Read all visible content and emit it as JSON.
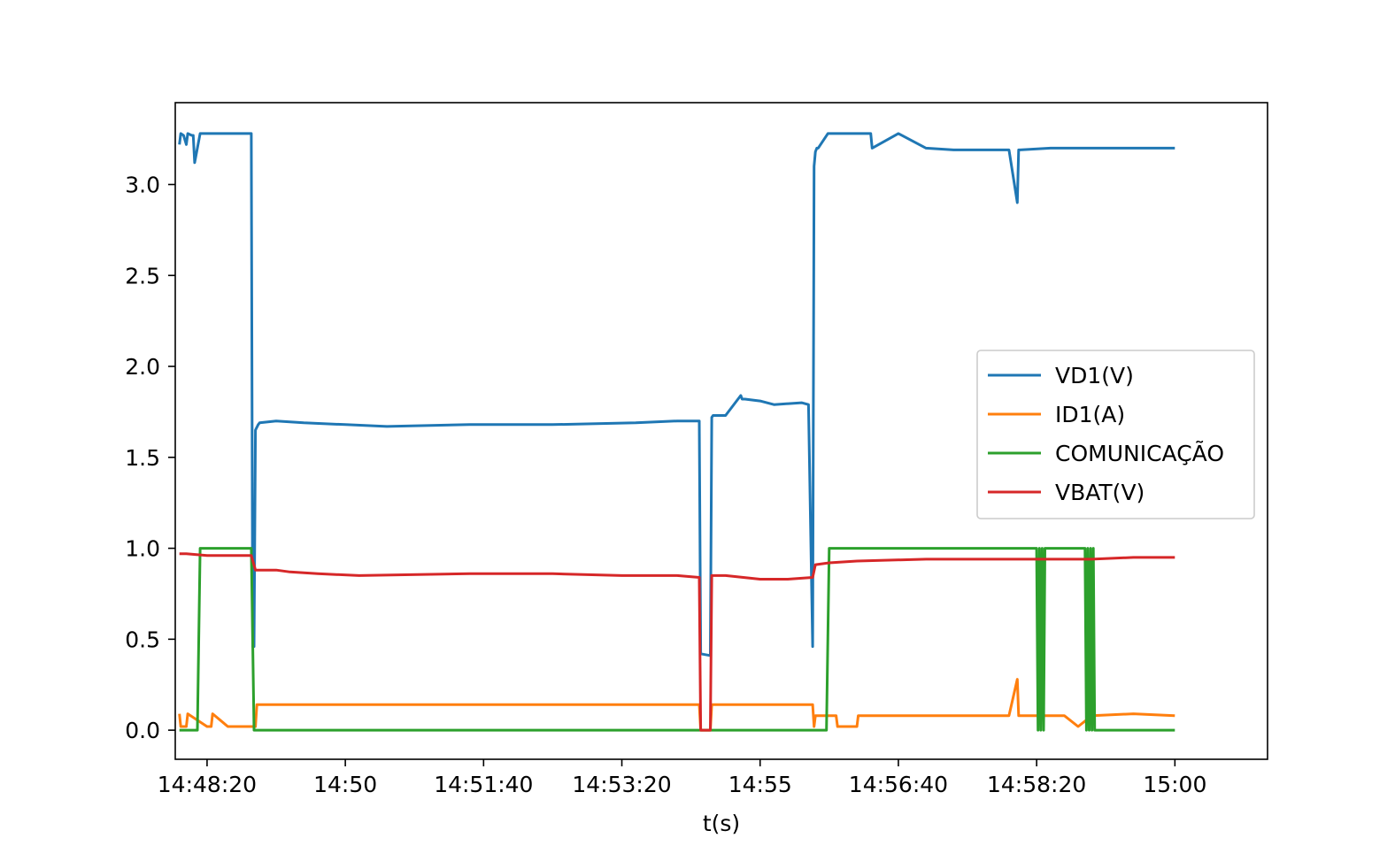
{
  "chart_data": {
    "type": "line",
    "title": "",
    "xlabel": "t(s)",
    "ylabel": "",
    "x_unit": "time of day (hh:mm:ss)",
    "xlim": [
      "14:47:57",
      "15:01:07"
    ],
    "ylim": [
      -0.16,
      3.45
    ],
    "x_ticks": [
      {
        "time": "14:48:20",
        "label": "14:48:20"
      },
      {
        "time": "14:50:00",
        "label": "14:50"
      },
      {
        "time": "14:51:40",
        "label": "14:51:40"
      },
      {
        "time": "14:53:20",
        "label": "14:53:20"
      },
      {
        "time": "14:55:00",
        "label": "14:55"
      },
      {
        "time": "14:56:40",
        "label": "14:56:40"
      },
      {
        "time": "14:58:20",
        "label": "14:58:20"
      },
      {
        "time": "15:00:00",
        "label": "15:00"
      }
    ],
    "y_ticks": [
      {
        "value": 0.0,
        "label": "0.0"
      },
      {
        "value": 0.5,
        "label": "0.5"
      },
      {
        "value": 1.0,
        "label": "1.0"
      },
      {
        "value": 1.5,
        "label": "1.5"
      },
      {
        "value": 2.0,
        "label": "2.0"
      },
      {
        "value": 2.5,
        "label": "2.5"
      },
      {
        "value": 3.0,
        "label": "3.0"
      }
    ],
    "grid": false,
    "legend_position": "center-right",
    "series": [
      {
        "name": "VD1(V)",
        "color": "#1f77b4",
        "x": [
          "14:48:00",
          "14:48:01",
          "14:48:03",
          "14:48:05",
          "14:48:06",
          "14:48:09",
          "14:48:10",
          "14:48:11",
          "14:48:15",
          "14:48:23",
          "14:48:24",
          "14:48:25",
          "14:48:35",
          "14:48:50",
          "14:48:52",
          "14:48:53",
          "14:48:54",
          "14:48:55",
          "14:48:57",
          "14:48:58",
          "14:49:10",
          "14:49:30",
          "14:50:00",
          "14:50:30",
          "14:51:30",
          "14:52:30",
          "14:53:30",
          "14:54:00",
          "14:54:15",
          "14:54:16",
          "14:54:17",
          "14:54:24",
          "14:54:25",
          "14:54:26",
          "14:54:35",
          "14:54:46",
          "14:54:47",
          "14:54:49",
          "14:55:00",
          "14:55:10",
          "14:55:30",
          "14:55:35",
          "14:55:38",
          "14:55:39",
          "14:55:40",
          "14:55:41",
          "14:55:42",
          "14:55:49",
          "14:55:50",
          "14:56:20",
          "14:56:21",
          "14:56:40",
          "14:57:00",
          "14:57:20",
          "14:57:50",
          "14:58:00",
          "14:58:06",
          "14:58:07",
          "14:58:08",
          "14:58:30",
          "14:59:00",
          "14:59:30",
          "15:00:00"
        ],
        "y": [
          3.22,
          3.28,
          3.27,
          3.22,
          3.28,
          3.27,
          3.27,
          3.12,
          3.28,
          3.28,
          3.28,
          3.28,
          3.28,
          3.28,
          3.28,
          0.46,
          0.46,
          1.65,
          1.68,
          1.69,
          1.7,
          1.69,
          1.68,
          1.67,
          1.68,
          1.68,
          1.69,
          1.7,
          1.7,
          1.7,
          0.42,
          0.41,
          1.72,
          1.73,
          1.73,
          1.84,
          1.82,
          1.82,
          1.81,
          1.79,
          1.8,
          1.79,
          0.46,
          3.1,
          3.18,
          3.2,
          3.2,
          3.28,
          3.28,
          3.28,
          3.2,
          3.28,
          3.2,
          3.19,
          3.19,
          3.19,
          2.9,
          3.19,
          3.19,
          3.2,
          3.2,
          3.2,
          3.2
        ]
      },
      {
        "name": "ID1(A)",
        "color": "#ff7f0e",
        "x": [
          "14:48:00",
          "14:48:01",
          "14:48:03",
          "14:48:05",
          "14:48:06",
          "14:48:20",
          "14:48:23",
          "14:48:24",
          "14:48:35",
          "14:48:50",
          "14:48:53",
          "14:48:55",
          "14:48:56",
          "14:49:30",
          "14:50:30",
          "14:51:30",
          "14:52:30",
          "14:53:30",
          "14:54:00",
          "14:54:16",
          "14:54:17",
          "14:54:24",
          "14:54:25",
          "14:54:40",
          "14:55:20",
          "14:55:38",
          "14:55:39",
          "14:55:40",
          "14:55:49",
          "14:55:50",
          "14:55:55",
          "14:55:56",
          "14:56:10",
          "14:56:11",
          "14:56:30",
          "14:56:40",
          "14:57:00",
          "14:57:20",
          "14:57:50",
          "14:58:00",
          "14:58:06",
          "14:58:07",
          "14:58:08",
          "14:58:30",
          "14:58:40",
          "14:58:50",
          "14:59:00",
          "14:59:30",
          "15:00:00"
        ],
        "y": [
          0.09,
          0.02,
          0.02,
          0.02,
          0.09,
          0.02,
          0.02,
          0.09,
          0.02,
          0.02,
          0.02,
          0.02,
          0.14,
          0.14,
          0.14,
          0.14,
          0.14,
          0.14,
          0.14,
          0.14,
          0.0,
          0.0,
          0.14,
          0.14,
          0.14,
          0.14,
          0.02,
          0.08,
          0.08,
          0.08,
          0.08,
          0.02,
          0.02,
          0.08,
          0.08,
          0.08,
          0.08,
          0.08,
          0.08,
          0.08,
          0.28,
          0.08,
          0.08,
          0.08,
          0.08,
          0.02,
          0.08,
          0.09,
          0.08
        ]
      },
      {
        "name": "COMUNICAÇÃO",
        "color": "#2ca02c",
        "x": [
          "14:48:00",
          "14:48:13",
          "14:48:15",
          "14:48:52",
          "14:48:54",
          "14:55:48",
          "14:55:50",
          "14:58:20",
          "14:58:21",
          "14:58:22",
          "14:58:23",
          "14:58:24",
          "14:58:25",
          "14:58:26",
          "14:58:27",
          "14:58:55",
          "14:58:56",
          "14:58:57",
          "14:58:58",
          "14:58:59",
          "14:59:00",
          "14:59:01",
          "14:59:02",
          "14:59:03",
          "15:00:00"
        ],
        "y": [
          0.0,
          0.0,
          1.0,
          1.0,
          0.0,
          0.0,
          1.0,
          1.0,
          0.0,
          1.0,
          0.0,
          1.0,
          0.0,
          1.0,
          1.0,
          1.0,
          0.0,
          1.0,
          0.0,
          1.0,
          0.0,
          1.0,
          0.0,
          0.0,
          0.0
        ]
      },
      {
        "name": "VBAT(V)",
        "color": "#d62728",
        "x": [
          "14:48:00",
          "14:48:05",
          "14:48:20",
          "14:48:30",
          "14:48:52",
          "14:48:55",
          "14:49:10",
          "14:49:20",
          "14:49:40",
          "14:50:10",
          "14:51:30",
          "14:52:30",
          "14:53:20",
          "14:54:00",
          "14:54:16",
          "14:54:17",
          "14:54:24",
          "14:54:25",
          "14:54:35",
          "14:55:00",
          "14:55:20",
          "14:55:38",
          "14:55:40",
          "14:55:50",
          "14:56:10",
          "14:57:00",
          "14:58:00",
          "14:58:30",
          "14:59:00",
          "14:59:30",
          "15:00:00"
        ],
        "y": [
          0.97,
          0.97,
          0.96,
          0.96,
          0.96,
          0.88,
          0.88,
          0.87,
          0.86,
          0.85,
          0.86,
          0.86,
          0.85,
          0.85,
          0.84,
          0.0,
          0.0,
          0.85,
          0.85,
          0.83,
          0.83,
          0.84,
          0.91,
          0.92,
          0.93,
          0.94,
          0.94,
          0.94,
          0.94,
          0.95,
          0.95
        ]
      }
    ]
  }
}
